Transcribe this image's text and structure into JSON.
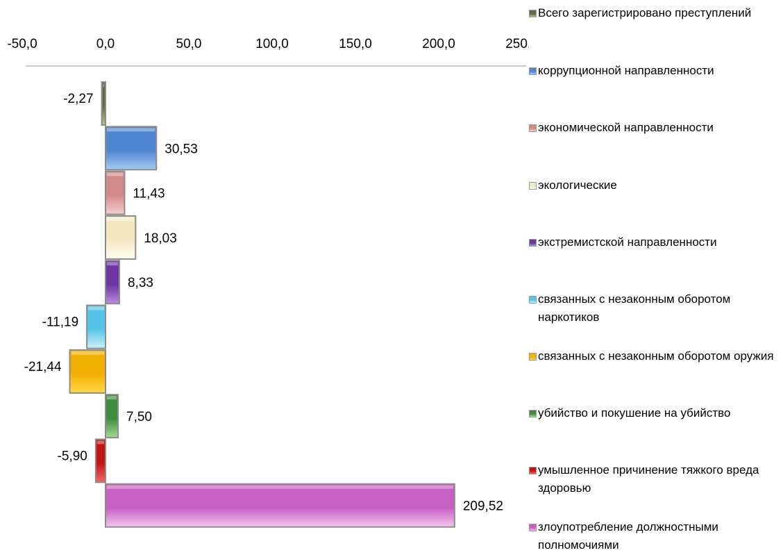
{
  "chart_data": {
    "type": "bar",
    "orientation": "horizontal",
    "title": "",
    "xlabel": "",
    "ylabel": "",
    "xlim": [
      -50,
      250
    ],
    "ticks": [
      -50,
      0,
      50,
      100,
      150,
      200,
      250
    ],
    "tick_labels": [
      "-50,0",
      "0,0",
      "50,0",
      "100,0",
      "150,0",
      "200,0",
      "250,0"
    ],
    "axis_position": "top",
    "grid": false,
    "legend_position": "right",
    "series": [
      {
        "name": "Всего зарегистрировано преступлений",
        "value": -2.27,
        "label": "-2,27",
        "color": "#5f6b45",
        "color_light": "#b3c48a"
      },
      {
        "name": "коррупционной направленности",
        "value": 30.53,
        "label": "30,53",
        "color": "#4f86d0",
        "color_light": "#a7c8f0"
      },
      {
        "name": "экономической направленности",
        "value": 11.43,
        "label": "11,43",
        "color": "#d28a88",
        "color_light": "#f3d0cf"
      },
      {
        "name": "экологические",
        "value": 18.03,
        "label": "18,03",
        "color": "#f4e8c0",
        "color_light": "#fffdf3"
      },
      {
        "name": "экстремистской направленности",
        "value": 8.33,
        "label": "8,33",
        "color": "#6b35a6",
        "color_light": "#b68ddd"
      },
      {
        "name": "связанных с незаконным оборотом наркотиков",
        "value": -11.19,
        "label": "-11,19",
        "color": "#54c4e8",
        "color_light": "#cdeef9"
      },
      {
        "name": "связанных с незаконным оборотом оружия",
        "value": -21.44,
        "label": "-21,44",
        "color": "#f2b000",
        "color_light": "#ffd84a"
      },
      {
        "name": "убийство и покушение на убийство",
        "value": 7.5,
        "label": "7,50",
        "color": "#3e8c3e",
        "color_light": "#a8d890"
      },
      {
        "name": "умышленное причинение тяжкого вреда здоровью",
        "value": -5.9,
        "label": "-5,90",
        "color": "#c41414",
        "color_light": "#ee6a6a"
      },
      {
        "name": "злоупотребление должностными полномочиями",
        "value": 209.52,
        "label": "209,52",
        "color": "#c85fc2",
        "color_light": "#f0c6ec"
      }
    ]
  }
}
